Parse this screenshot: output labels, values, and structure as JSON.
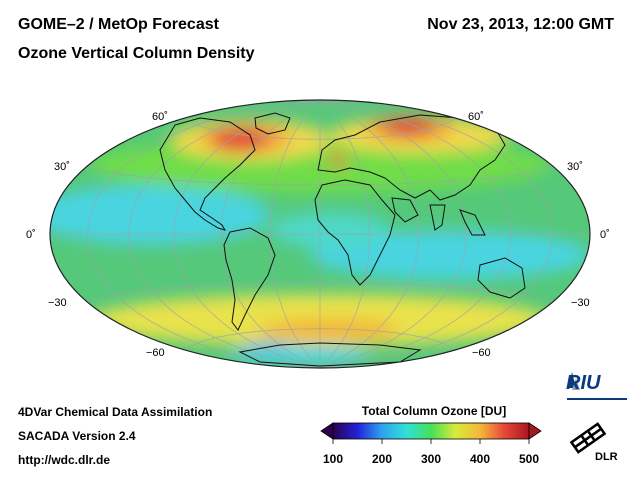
{
  "header": {
    "title_line1": "GOME–2 / MetOp Forecast",
    "title_line2": "Ozone Vertical Column Density",
    "date": "Nov 23, 2013, 12:00 GMT"
  },
  "map": {
    "projection": "Hammer-Aitoff (global)",
    "lat_labels_left": [
      "60˚",
      "30˚",
      "0˚",
      "−30",
      "−60"
    ],
    "lat_labels_right": [
      "60˚",
      "30˚",
      "0˚",
      "−30",
      "−60"
    ],
    "field_colors": {
      "background": "#55c87a",
      "low_cyan": "#49d4e0",
      "mid_green": "#6fdd4a",
      "high_yellow": "#f2e14c",
      "very_high_orange": "#f4a03a",
      "max_red": "#e0323a",
      "min_blue": "#2f6fe0"
    }
  },
  "colorbar": {
    "title": "Total Column Ozone [DU]",
    "ticks": [
      "100",
      "200",
      "300",
      "400",
      "500"
    ],
    "colors": [
      "#2b0050",
      "#2222d8",
      "#2ea3f0",
      "#2fe0d8",
      "#46e05a",
      "#d8ea3a",
      "#f4b83a",
      "#e8463a",
      "#a8161e"
    ]
  },
  "footer": {
    "line1": "4DVar Chemical Data Assimilation",
    "line2": "SACADA Version 2.4",
    "line3": "http://wdc.dlr.de"
  },
  "logos": {
    "riu": "RIU",
    "dlr": "DLR"
  }
}
